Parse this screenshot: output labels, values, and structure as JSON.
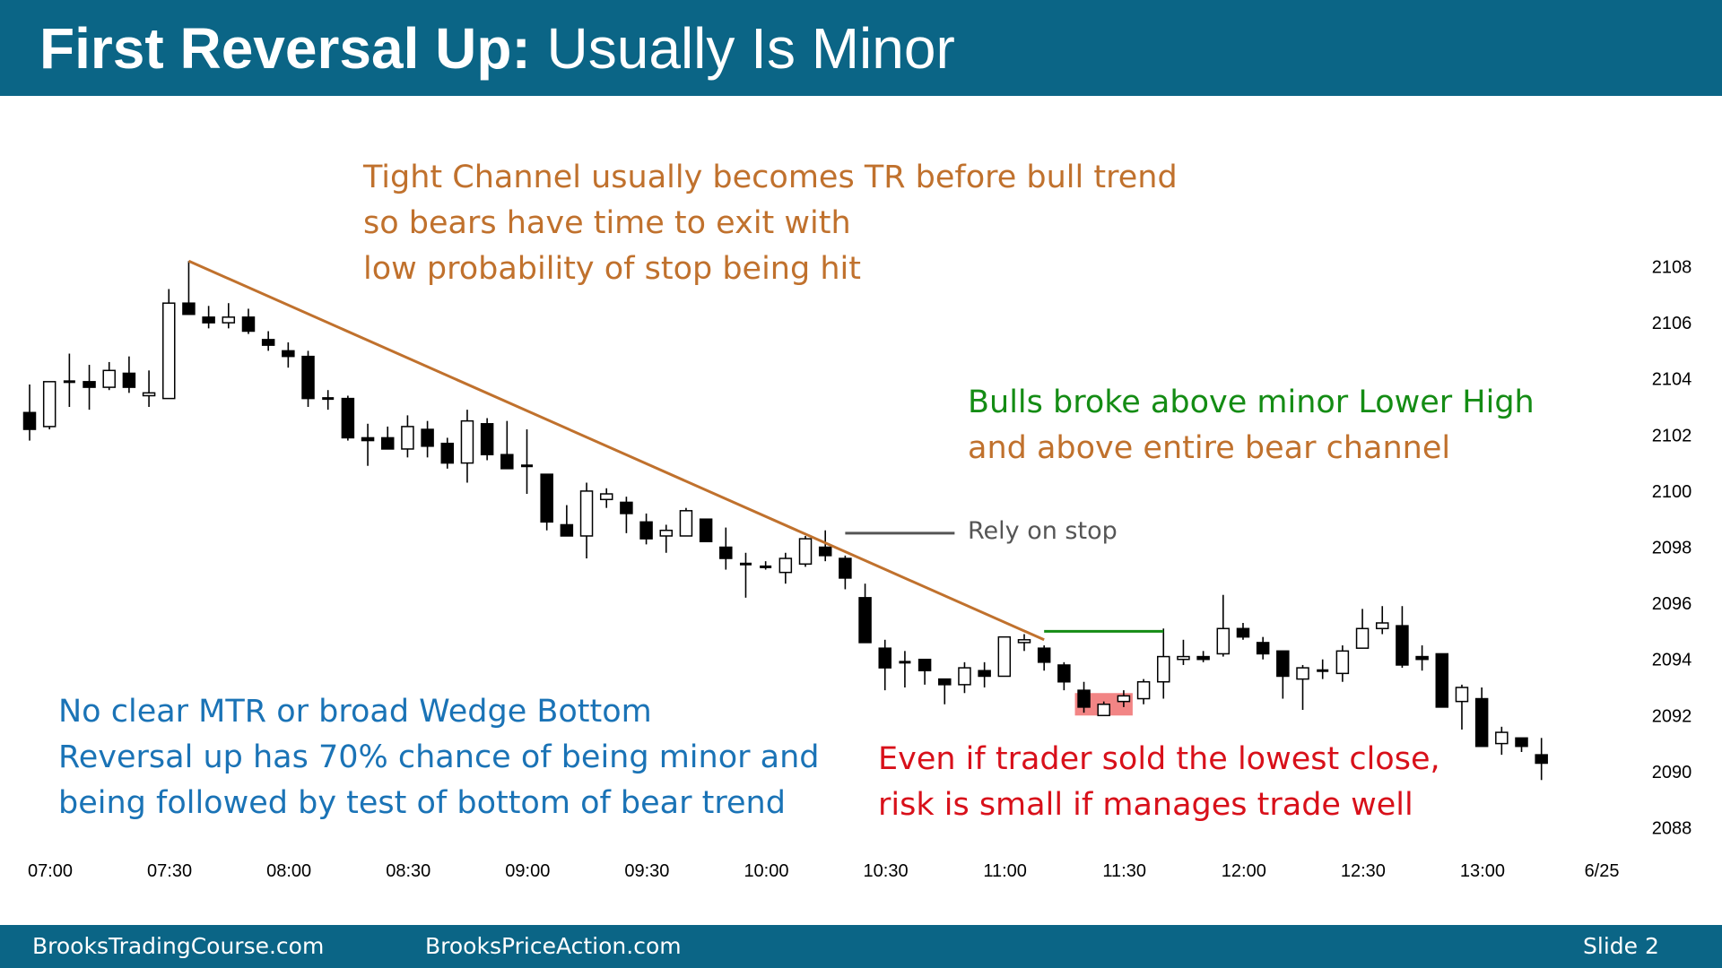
{
  "slide": {
    "title_bold": "First Reversal Up:",
    "title_rest": " Usually Is Minor"
  },
  "annotations": {
    "tight_channel": [
      "Tight Channel usually becomes TR before bull trend",
      "so bears have time to exit with",
      "low probability of stop being hit"
    ],
    "bulls_broke": [
      "Bulls broke above minor Lower High",
      "and above entire bear channel"
    ],
    "rely_on_stop": "Rely on stop",
    "no_clear_mtr": [
      "No clear MTR or broad Wedge Bottom",
      "Reversal up has 70% chance of being minor and",
      "being followed by test of bottom of bear trend"
    ],
    "even_if_trader": [
      "Even if trader sold the lowest close,",
      "risk is small if manages trade well"
    ]
  },
  "footer": {
    "left": "BrooksTradingCourse.com",
    "center": "BrooksPriceAction.com",
    "right": "Slide  2"
  },
  "colors": {
    "header": "#0b6586",
    "trendline": "#c0712d",
    "lower_high_line": "#148c14",
    "stop_line": "#555555",
    "highlight": "#f07070",
    "bull_candle": "#ffffff",
    "bear_candle": "#000000"
  },
  "chart_data": {
    "type": "candlestick",
    "instrument_note": "5-minute bars",
    "x_axis": {
      "tick_labels": [
        "07:00",
        "07:30",
        "08:00",
        "08:30",
        "09:00",
        "09:30",
        "10:00",
        "10:30",
        "11:00",
        "11:30",
        "12:00",
        "12:30",
        "13:00",
        "6/25"
      ]
    },
    "y_axis": {
      "side": "right",
      "ticks": [
        2108,
        2106,
        2104,
        2102,
        2100,
        2098,
        2096,
        2094,
        2092,
        2090,
        2088
      ],
      "range": [
        2087.2,
        2110.3
      ]
    },
    "grid": false,
    "bars": [
      {
        "time": "07:00",
        "open": 2102.8,
        "high": 2103.8,
        "low": 2101.8,
        "close": 2102.2
      },
      {
        "time": "07:05",
        "open": 2102.3,
        "high": 2103.9,
        "low": 2102.2,
        "close": 2103.9
      },
      {
        "time": "07:10",
        "open": 2103.9,
        "high": 2104.9,
        "low": 2103.0,
        "close": 2103.9
      },
      {
        "time": "07:15",
        "open": 2103.9,
        "high": 2104.5,
        "low": 2102.9,
        "close": 2103.7
      },
      {
        "time": "07:20",
        "open": 2103.7,
        "high": 2104.6,
        "low": 2103.6,
        "close": 2104.3
      },
      {
        "time": "07:25",
        "open": 2104.2,
        "high": 2104.8,
        "low": 2103.5,
        "close": 2103.7
      },
      {
        "time": "07:30",
        "open": 2103.4,
        "high": 2104.3,
        "low": 2103.0,
        "close": 2103.5
      },
      {
        "time": "07:35",
        "open": 2103.3,
        "high": 2107.2,
        "low": 2103.3,
        "close": 2106.7
      },
      {
        "time": "07:40",
        "open": 2106.7,
        "high": 2108.2,
        "low": 2106.3,
        "close": 2106.3
      },
      {
        "time": "07:45",
        "open": 2106.2,
        "high": 2106.6,
        "low": 2105.8,
        "close": 2106.0
      },
      {
        "time": "07:50",
        "open": 2106.0,
        "high": 2106.7,
        "low": 2105.8,
        "close": 2106.2
      },
      {
        "time": "07:55",
        "open": 2106.2,
        "high": 2106.5,
        "low": 2105.6,
        "close": 2105.7
      },
      {
        "time": "08:00",
        "open": 2105.4,
        "high": 2105.7,
        "low": 2105.0,
        "close": 2105.2
      },
      {
        "time": "08:05",
        "open": 2105.0,
        "high": 2105.3,
        "low": 2104.4,
        "close": 2104.8
      },
      {
        "time": "08:10",
        "open": 2104.8,
        "high": 2105.0,
        "low": 2103.0,
        "close": 2103.3
      },
      {
        "time": "08:15",
        "open": 2103.3,
        "high": 2103.6,
        "low": 2102.9,
        "close": 2103.3
      },
      {
        "time": "08:20",
        "open": 2103.3,
        "high": 2103.4,
        "low": 2101.8,
        "close": 2101.9
      },
      {
        "time": "08:25",
        "open": 2101.9,
        "high": 2102.4,
        "low": 2100.9,
        "close": 2101.8
      },
      {
        "time": "08:30",
        "open": 2101.9,
        "high": 2102.3,
        "low": 2101.5,
        "close": 2101.5
      },
      {
        "time": "08:35",
        "open": 2101.5,
        "high": 2102.7,
        "low": 2101.2,
        "close": 2102.3
      },
      {
        "time": "08:40",
        "open": 2102.2,
        "high": 2102.5,
        "low": 2101.2,
        "close": 2101.6
      },
      {
        "time": "08:45",
        "open": 2101.7,
        "high": 2101.9,
        "low": 2100.8,
        "close": 2101.0
      },
      {
        "time": "08:50",
        "open": 2101.0,
        "high": 2102.9,
        "low": 2100.3,
        "close": 2102.5
      },
      {
        "time": "08:55",
        "open": 2102.4,
        "high": 2102.6,
        "low": 2101.1,
        "close": 2101.3
      },
      {
        "time": "09:00",
        "open": 2101.3,
        "high": 2102.5,
        "low": 2100.8,
        "close": 2100.8
      },
      {
        "time": "09:05",
        "open": 2100.9,
        "high": 2102.2,
        "low": 2099.9,
        "close": 2100.9
      },
      {
        "time": "09:10",
        "open": 2100.6,
        "high": 2100.6,
        "low": 2098.6,
        "close": 2098.9
      },
      {
        "time": "09:15",
        "open": 2098.8,
        "high": 2099.5,
        "low": 2098.4,
        "close": 2098.4
      },
      {
        "time": "09:20",
        "open": 2098.4,
        "high": 2100.3,
        "low": 2097.6,
        "close": 2100.0
      },
      {
        "time": "09:25",
        "open": 2099.7,
        "high": 2100.1,
        "low": 2099.4,
        "close": 2099.9
      },
      {
        "time": "09:30",
        "open": 2099.6,
        "high": 2099.8,
        "low": 2098.5,
        "close": 2099.2
      },
      {
        "time": "09:35",
        "open": 2098.9,
        "high": 2099.2,
        "low": 2098.1,
        "close": 2098.3
      },
      {
        "time": "09:40",
        "open": 2098.4,
        "high": 2098.8,
        "low": 2097.8,
        "close": 2098.6
      },
      {
        "time": "09:45",
        "open": 2098.4,
        "high": 2099.4,
        "low": 2098.4,
        "close": 2099.3
      },
      {
        "time": "09:50",
        "open": 2099.0,
        "high": 2099.0,
        "low": 2098.2,
        "close": 2098.2
      },
      {
        "time": "09:55",
        "open": 2098.0,
        "high": 2098.7,
        "low": 2097.2,
        "close": 2097.6
      },
      {
        "time": "10:00",
        "open": 2097.4,
        "high": 2097.8,
        "low": 2096.2,
        "close": 2097.4
      },
      {
        "time": "10:05",
        "open": 2097.3,
        "high": 2097.5,
        "low": 2097.2,
        "close": 2097.3
      },
      {
        "time": "10:10",
        "open": 2097.1,
        "high": 2097.8,
        "low": 2096.7,
        "close": 2097.6
      },
      {
        "time": "10:15",
        "open": 2097.4,
        "high": 2098.4,
        "low": 2097.3,
        "close": 2098.3
      },
      {
        "time": "10:20",
        "open": 2098.0,
        "high": 2098.6,
        "low": 2097.5,
        "close": 2097.7
      },
      {
        "time": "10:25",
        "open": 2097.6,
        "high": 2097.7,
        "low": 2096.5,
        "close": 2096.9
      },
      {
        "time": "10:30",
        "open": 2096.2,
        "high": 2096.7,
        "low": 2094.6,
        "close": 2094.6
      },
      {
        "time": "10:35",
        "open": 2094.4,
        "high": 2094.7,
        "low": 2092.9,
        "close": 2093.7
      },
      {
        "time": "10:40",
        "open": 2093.9,
        "high": 2094.3,
        "low": 2093.0,
        "close": 2093.9
      },
      {
        "time": "10:45",
        "open": 2094.0,
        "high": 2094.0,
        "low": 2093.1,
        "close": 2093.6
      },
      {
        "time": "10:50",
        "open": 2093.3,
        "high": 2093.3,
        "low": 2092.4,
        "close": 2093.1
      },
      {
        "time": "10:55",
        "open": 2093.1,
        "high": 2093.9,
        "low": 2092.8,
        "close": 2093.7
      },
      {
        "time": "11:00",
        "open": 2093.6,
        "high": 2093.9,
        "low": 2093.0,
        "close": 2093.4
      },
      {
        "time": "11:05",
        "open": 2093.4,
        "high": 2094.8,
        "low": 2093.4,
        "close": 2094.8
      },
      {
        "time": "11:10",
        "open": 2094.6,
        "high": 2094.9,
        "low": 2094.3,
        "close": 2094.7
      },
      {
        "time": "11:15",
        "open": 2094.4,
        "high": 2094.5,
        "low": 2093.6,
        "close": 2093.9
      },
      {
        "time": "11:20",
        "open": 2093.8,
        "high": 2093.9,
        "low": 2092.9,
        "close": 2093.2
      },
      {
        "time": "11:25",
        "open": 2092.9,
        "high": 2093.2,
        "low": 2092.1,
        "close": 2092.3
      },
      {
        "time": "11:30",
        "open": 2092.0,
        "high": 2092.5,
        "low": 2092.0,
        "close": 2092.4
      },
      {
        "time": "11:35",
        "open": 2092.5,
        "high": 2092.9,
        "low": 2092.3,
        "close": 2092.7
      },
      {
        "time": "11:40",
        "open": 2092.6,
        "high": 2093.3,
        "low": 2092.4,
        "close": 2093.2
      },
      {
        "time": "11:45",
        "open": 2093.2,
        "high": 2095.1,
        "low": 2092.6,
        "close": 2094.1
      },
      {
        "time": "11:50",
        "open": 2094.0,
        "high": 2094.7,
        "low": 2093.8,
        "close": 2094.1
      },
      {
        "time": "11:55",
        "open": 2094.1,
        "high": 2094.3,
        "low": 2093.9,
        "close": 2094.0
      },
      {
        "time": "12:00",
        "open": 2094.2,
        "high": 2096.3,
        "low": 2094.1,
        "close": 2095.1
      },
      {
        "time": "12:05",
        "open": 2095.1,
        "high": 2095.3,
        "low": 2094.7,
        "close": 2094.8
      },
      {
        "time": "12:10",
        "open": 2094.6,
        "high": 2094.8,
        "low": 2094.0,
        "close": 2094.2
      },
      {
        "time": "12:15",
        "open": 2094.3,
        "high": 2094.3,
        "low": 2092.6,
        "close": 2093.4
      },
      {
        "time": "12:20",
        "open": 2093.3,
        "high": 2093.8,
        "low": 2092.2,
        "close": 2093.7
      },
      {
        "time": "12:25",
        "open": 2093.6,
        "high": 2094.0,
        "low": 2093.3,
        "close": 2093.6
      },
      {
        "time": "12:30",
        "open": 2093.5,
        "high": 2094.5,
        "low": 2093.2,
        "close": 2094.3
      },
      {
        "time": "12:35",
        "open": 2094.4,
        "high": 2095.8,
        "low": 2094.4,
        "close": 2095.1
      },
      {
        "time": "12:40",
        "open": 2095.1,
        "high": 2095.9,
        "low": 2094.9,
        "close": 2095.3
      },
      {
        "time": "12:45",
        "open": 2095.2,
        "high": 2095.9,
        "low": 2093.7,
        "close": 2093.8
      },
      {
        "time": "12:50",
        "open": 2094.1,
        "high": 2094.5,
        "low": 2093.6,
        "close": 2094.0
      },
      {
        "time": "12:55",
        "open": 2094.2,
        "high": 2094.2,
        "low": 2092.3,
        "close": 2092.3
      },
      {
        "time": "13:00",
        "open": 2092.5,
        "high": 2093.1,
        "low": 2091.5,
        "close": 2093.0
      },
      {
        "time": "13:05",
        "open": 2092.6,
        "high": 2093.0,
        "low": 2090.9,
        "close": 2090.9
      },
      {
        "time": "13:10",
        "open": 2091.0,
        "high": 2091.6,
        "low": 2090.6,
        "close": 2091.4
      },
      {
        "time": "13:15",
        "open": 2091.2,
        "high": 2091.2,
        "low": 2090.7,
        "close": 2090.9
      },
      {
        "time": "13:20",
        "open": 2090.6,
        "high": 2091.2,
        "low": 2089.7,
        "close": 2090.3
      }
    ],
    "overlays": [
      {
        "kind": "trendline",
        "label": "bear trendline",
        "from": {
          "bar": 8,
          "price": 2108.2
        },
        "to": {
          "bar": 51,
          "price": 2094.7
        }
      },
      {
        "kind": "horizontal",
        "label": "minor lower high",
        "from": {
          "bar": 51,
          "price": 2095.0
        },
        "to": {
          "bar": 57,
          "price": 2095.0
        }
      },
      {
        "kind": "horizontal",
        "label": "stop level",
        "from": {
          "bar": 41,
          "price": 2098.5
        },
        "to": {
          "bar": 46.5,
          "price": 2098.5
        }
      },
      {
        "kind": "highlight",
        "label": "lowest close bars",
        "from_bar": 53,
        "to_bar": 55,
        "price_low": 2092.0,
        "price_high": 2092.8
      }
    ]
  }
}
